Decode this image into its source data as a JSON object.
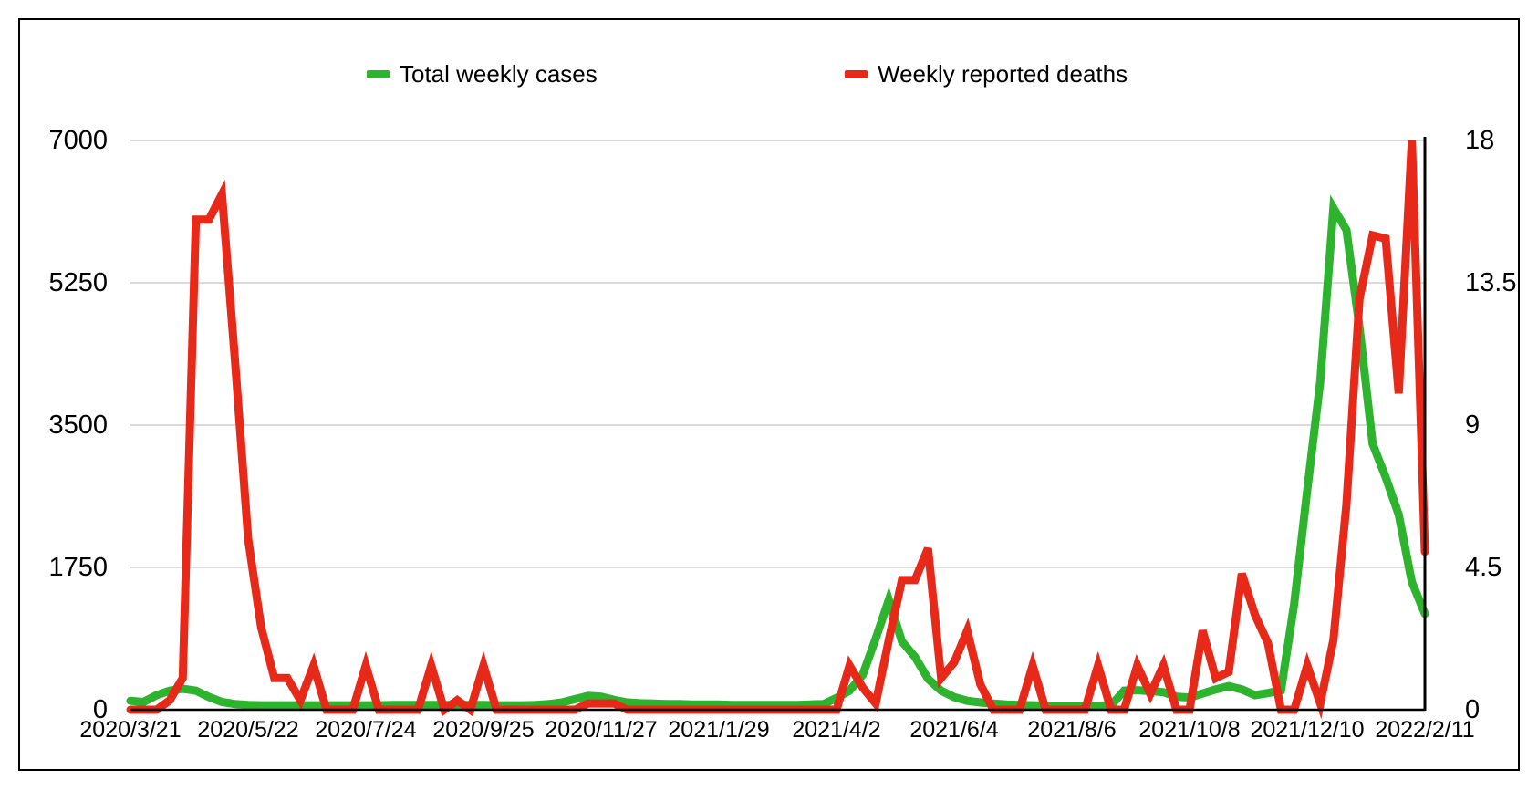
{
  "chart": {
    "legend": {
      "items": [
        {
          "label": "Total weekly cases",
          "color": "#2db32d"
        },
        {
          "label": "Weekly reported deaths",
          "color": "#e7291a"
        }
      ]
    }
  },
  "chart_data": {
    "type": "line",
    "title": "",
    "legend_position": "top",
    "grid": "horizontal",
    "gridline_color": "#cfcfcf",
    "axis_color": "#000000",
    "x_tick_labels": [
      "2020/3/21",
      "2020/5/22",
      "2020/7/24",
      "2020/9/25",
      "2020/11/27",
      "2021/1/29",
      "2021/4/2",
      "2021/6/4",
      "2021/8/6",
      "2021/10/8",
      "2021/12/10",
      "2022/2/11"
    ],
    "x_tick_week_indices": [
      0,
      9,
      18,
      27,
      36,
      45,
      54,
      63,
      72,
      81,
      90,
      99
    ],
    "left_axis": {
      "min": 0,
      "max": 7000,
      "tick_values": [
        0,
        1750,
        3500,
        5250,
        7000
      ],
      "tick_labels": [
        "0",
        "1750",
        "3500",
        "5250",
        "7000"
      ]
    },
    "right_axis": {
      "min": 0,
      "max": 18,
      "tick_values": [
        0,
        4.5,
        9,
        13.5,
        18
      ],
      "tick_labels": [
        "0",
        "4.5",
        "9",
        "13.5",
        "18"
      ]
    },
    "series": [
      {
        "name": "Total weekly cases",
        "axis": "left",
        "color": "#2db32d",
        "values": [
          110,
          95,
          180,
          235,
          258,
          235,
          157,
          95,
          70,
          60,
          55,
          55,
          55,
          55,
          55,
          55,
          55,
          55,
          55,
          55,
          60,
          60,
          60,
          60,
          60,
          60,
          60,
          60,
          55,
          55,
          55,
          60,
          70,
          90,
          130,
          170,
          160,
          120,
          90,
          80,
          75,
          70,
          70,
          65,
          65,
          65,
          60,
          60,
          60,
          60,
          60,
          60,
          65,
          70,
          145,
          235,
          430,
          875,
          1350,
          840,
          650,
          380,
          235,
          155,
          110,
          90,
          75,
          65,
          60,
          55,
          50,
          50,
          50,
          50,
          50,
          55,
          235,
          240,
          230,
          215,
          160,
          150,
          200,
          250,
          290,
          250,
          180,
          205,
          240,
          1300,
          2700,
          4040,
          6170,
          5900,
          4700,
          3270,
          2860,
          2400,
          1570,
          1180
        ]
      },
      {
        "name": "Weekly reported deaths",
        "axis": "right",
        "color": "#e7291a",
        "values": [
          0,
          0,
          0,
          0.3,
          1,
          15.5,
          15.5,
          16.3,
          11,
          5.4,
          2.6,
          1,
          1,
          0.3,
          1.4,
          0,
          0,
          0,
          1.4,
          0,
          0,
          0,
          0,
          1.4,
          0,
          0.3,
          0,
          1.4,
          0,
          0,
          0,
          0,
          0,
          0,
          0,
          0.2,
          0.2,
          0.2,
          0,
          0,
          0,
          0,
          0,
          0,
          0,
          0,
          0,
          0,
          0,
          0,
          0,
          0,
          0,
          0,
          0,
          1.4,
          0.7,
          0.2,
          2.2,
          4.1,
          4.1,
          5.1,
          1,
          1.5,
          2.5,
          0.8,
          0,
          0,
          0,
          1.4,
          0,
          0,
          0,
          0,
          1.4,
          0,
          0,
          1.4,
          0.5,
          1.4,
          0,
          0,
          2.5,
          1,
          1.2,
          4.3,
          3,
          2.1,
          0,
          0,
          1.4,
          0.2,
          2.2,
          6.5,
          13,
          15,
          14.9,
          10,
          18,
          5
        ]
      }
    ]
  }
}
